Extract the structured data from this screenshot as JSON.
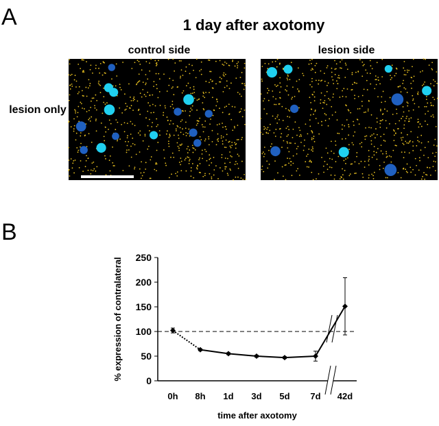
{
  "panel_a": {
    "label": "A",
    "title": "1 day after axotomy",
    "columns": [
      "control side",
      "lesion side"
    ],
    "row_label": "lesion only"
  },
  "panel_b": {
    "label": "B"
  },
  "chart_data": {
    "type": "line",
    "categories": [
      "0h",
      "8h",
      "1d",
      "3d",
      "5d",
      "7d",
      "42d"
    ],
    "values": [
      102,
      63,
      55,
      50,
      47,
      50,
      151
    ],
    "errors": [
      5,
      2,
      2,
      2,
      2,
      10,
      58
    ],
    "color": "#000000",
    "ylim": [
      0,
      250
    ],
    "yticks": [
      0,
      50,
      100,
      150,
      200,
      250
    ],
    "reference_line": 100,
    "y_label": "% expression of contralateral",
    "x_label": "time after axotomy"
  }
}
